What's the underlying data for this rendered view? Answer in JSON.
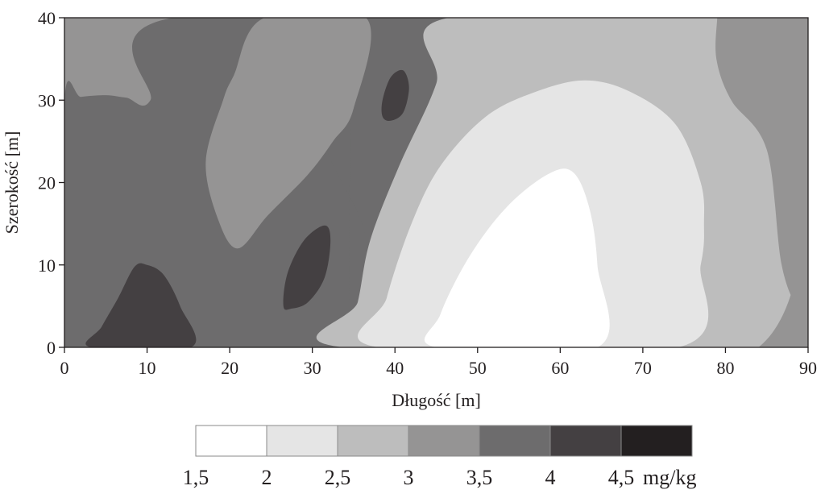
{
  "chart_data": {
    "type": "heatmap",
    "subtype": "filled-contour",
    "xlabel": "Długość [m]",
    "ylabel": "Szerokość  [m]",
    "xlim": [
      0,
      90
    ],
    "ylim": [
      0,
      40
    ],
    "x_ticks": [
      0,
      10,
      20,
      30,
      40,
      50,
      60,
      70,
      80,
      90
    ],
    "y_ticks": [
      0,
      10,
      20,
      30,
      40
    ],
    "x_tick_labels": [
      "0",
      "10",
      "20",
      "30",
      "40",
      "50",
      "60",
      "70",
      "80",
      "90"
    ],
    "y_tick_labels": [
      "0",
      "10",
      "20",
      "30",
      "40"
    ],
    "legend": {
      "placement": "bottom",
      "unit": "mg/kg",
      "labels": [
        "1,5",
        "2",
        "2,5",
        "3",
        "3,5",
        "4",
        "4,5"
      ],
      "bins": [
        {
          "from": 1.5,
          "to": 2.0,
          "color": "#ffffff"
        },
        {
          "from": 2.0,
          "to": 2.5,
          "color": "#e5e5e5"
        },
        {
          "from": 2.5,
          "to": 3.0,
          "color": "#bdbdbd"
        },
        {
          "from": 3.0,
          "to": 3.5,
          "color": "#959494"
        },
        {
          "from": 3.5,
          "to": 4.0,
          "color": "#6d6c6d"
        },
        {
          "from": 4.0,
          "to": 4.5,
          "color": "#444042"
        },
        {
          "from": 4.5,
          "to": 5.0,
          "color": "#231f20"
        }
      ]
    },
    "regions": [
      {
        "level": "3-3,5",
        "color": "#959494",
        "points": [
          [
            0,
            0
          ],
          [
            90,
            0
          ],
          [
            90,
            40
          ],
          [
            0,
            40
          ]
        ]
      },
      {
        "level": "3,5-4",
        "color": "#6d6c6d",
        "points": [
          [
            0,
            0
          ],
          [
            70,
            0
          ],
          [
            70,
            40
          ],
          [
            13.2,
            40
          ],
          [
            10.4,
            30
          ],
          [
            7.5,
            30.3
          ],
          [
            5,
            30.6
          ],
          [
            2,
            30.4
          ],
          [
            0,
            30
          ]
        ]
      },
      {
        "level": "3,5-4",
        "color": "#6d6c6d",
        "points": [
          [
            35,
            0
          ],
          [
            35,
            40
          ],
          [
            34.6,
            36
          ],
          [
            31.3,
            26
          ],
          [
            36,
            15
          ],
          [
            38.3,
            4
          ],
          [
            43,
            0
          ]
        ]
      },
      {
        "level": "3-3,5",
        "color": "#959494",
        "points": [
          [
            19.2,
            30
          ],
          [
            17.1,
            22.5
          ],
          [
            18.6,
            15.5
          ],
          [
            21,
            12
          ],
          [
            24.6,
            16
          ],
          [
            29.5,
            21
          ],
          [
            32.5,
            25
          ],
          [
            35,
            29
          ],
          [
            36.5,
            40
          ],
          [
            24.2,
            40
          ],
          [
            20.5,
            33
          ]
        ]
      },
      {
        "level": "2,5-3",
        "color": "#bdbdbd",
        "points": [
          [
            33.8,
            0
          ],
          [
            84,
            0
          ],
          [
            84,
            40
          ],
          [
            46.5,
            40
          ],
          [
            45,
            32
          ],
          [
            40.5,
            22
          ],
          [
            37,
            13
          ],
          [
            35.5,
            5.5
          ]
        ]
      },
      {
        "level": "3-3,5",
        "color": "#959494",
        "points": [
          [
            79,
            40
          ],
          [
            78.9,
            35
          ],
          [
            80.7,
            30
          ],
          [
            85,
            24
          ],
          [
            86.8,
            10
          ],
          [
            89,
            4
          ],
          [
            91,
            0
          ],
          [
            91,
            41
          ],
          [
            79,
            41
          ]
        ]
      },
      {
        "level": "2-2,5",
        "color": "#e5e5e5",
        "points": [
          [
            38,
            0
          ],
          [
            74.3,
            0
          ],
          [
            77,
            10
          ],
          [
            77.4,
            15
          ],
          [
            77,
            20
          ],
          [
            74,
            27
          ],
          [
            68.5,
            31
          ],
          [
            63,
            32.4
          ],
          [
            57,
            31
          ],
          [
            51,
            28
          ],
          [
            45.5,
            22
          ],
          [
            42,
            15
          ],
          [
            39,
            6
          ]
        ]
      },
      {
        "level": "1,5-2",
        "color": "#ffffff",
        "points": [
          [
            45,
            0
          ],
          [
            64.5,
            0
          ],
          [
            64.5,
            10
          ],
          [
            63.5,
            17
          ],
          [
            61.5,
            21.3
          ],
          [
            58.5,
            21
          ],
          [
            53.5,
            17
          ],
          [
            49,
            11
          ],
          [
            45.5,
            4
          ]
        ]
      },
      {
        "level": "4-4,5",
        "color": "#444042",
        "points": [
          [
            3.2,
            0
          ],
          [
            15.3,
            0
          ],
          [
            14,
            5
          ],
          [
            12,
            8.8
          ],
          [
            10,
            10
          ],
          [
            8.5,
            9.8
          ],
          [
            6.5,
            6
          ],
          [
            4.5,
            2.5
          ]
        ]
      },
      {
        "level": "4-4,5",
        "color": "#444042",
        "points": [
          [
            26.5,
            5
          ],
          [
            27,
            9
          ],
          [
            29,
            13
          ],
          [
            31.5,
            14.8
          ],
          [
            32.2,
            13
          ],
          [
            31.5,
            8.5
          ],
          [
            29.5,
            5.5
          ],
          [
            27.5,
            4.7
          ]
        ]
      },
      {
        "level": "4-4,5",
        "color": "#444042",
        "points": [
          [
            38.5,
            30
          ],
          [
            39.5,
            32.8
          ],
          [
            41,
            33.6
          ],
          [
            41.7,
            31.5
          ],
          [
            41,
            28.5
          ],
          [
            39.5,
            27.5
          ],
          [
            38.5,
            28
          ]
        ]
      }
    ]
  }
}
